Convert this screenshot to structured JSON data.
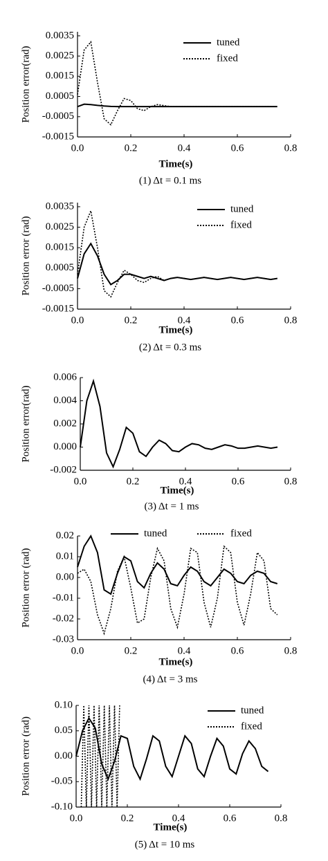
{
  "chart_data": [
    {
      "type": "line",
      "xlabel": "Time(s)",
      "ylabel": "Position error(rad)",
      "caption": "(1)  Δt = 0.1 ms",
      "legend": "upper right",
      "xlim": [
        0,
        0.8
      ],
      "xticks": [
        {
          "value": 0,
          "label": "0.0"
        },
        0.2,
        0.4,
        0.6,
        0.8
      ],
      "ylim": [
        -0.0015,
        0.0037
      ],
      "yticks": [
        0.0035,
        0.0025,
        0.0015,
        0.0005,
        -0.0005,
        -0.0015
      ],
      "x": [
        0,
        0.025,
        0.05,
        0.075,
        0.1,
        0.125,
        0.15,
        0.175,
        0.2,
        0.225,
        0.25,
        0.275,
        0.3,
        0.325,
        0.35,
        0.375,
        0.4,
        0.425,
        0.45,
        0.475,
        0.5,
        0.525,
        0.55,
        0.575,
        0.6,
        0.625,
        0.65,
        0.675,
        0.7,
        0.725,
        0.75
      ],
      "series": [
        {
          "name": "tuned",
          "color": "#000000",
          "dash": "solid",
          "values": [
            0,
            0.00012,
            0.0001,
            6e-05,
            3e-05,
            1e-05,
            0,
            0,
            0,
            0,
            0,
            0,
            0,
            0,
            0,
            0,
            0,
            0,
            0,
            0,
            0,
            0,
            0,
            0,
            0,
            0,
            0,
            0,
            0,
            0,
            0
          ]
        },
        {
          "name": "fixed",
          "color": "#000000",
          "dash": "dotted",
          "values": [
            0.0006,
            0.0028,
            0.0032,
            0.0012,
            -0.0006,
            -0.0009,
            -0.0002,
            0.0004,
            0.0003,
            -0.0001,
            -0.0002,
            0,
            0.0001,
            5e-05,
            0,
            0,
            0,
            0,
            0,
            0,
            0,
            0,
            0,
            0,
            0,
            0,
            0,
            0,
            0,
            0,
            0
          ]
        }
      ]
    },
    {
      "type": "line",
      "xlabel": "Time(s)",
      "ylabel": "Position error (rad)",
      "caption": "(2)  Δt = 0.3 ms",
      "legend": "upper right",
      "xlim": [
        0,
        0.8
      ],
      "xticks": [
        {
          "value": 0,
          "label": "0.0"
        },
        0.2,
        0.4,
        0.6,
        0.8
      ],
      "ylim": [
        -0.0015,
        0.0037
      ],
      "yticks": [
        0.0035,
        0.0025,
        0.0015,
        0.0005,
        -0.0005,
        -0.0015
      ],
      "x": [
        0,
        0.025,
        0.05,
        0.075,
        0.1,
        0.125,
        0.15,
        0.175,
        0.2,
        0.225,
        0.25,
        0.275,
        0.3,
        0.325,
        0.35,
        0.375,
        0.4,
        0.425,
        0.45,
        0.475,
        0.5,
        0.525,
        0.55,
        0.575,
        0.6,
        0.625,
        0.65,
        0.675,
        0.7,
        0.725,
        0.75
      ],
      "series": [
        {
          "name": "tuned",
          "color": "#000000",
          "dash": "solid",
          "values": [
            0,
            0.0012,
            0.0017,
            0.0011,
            0.0002,
            -0.0003,
            -0.0001,
            0.0002,
            0.0002,
            0.0001,
            0,
            0.0001,
            0,
            -0.0001,
            0,
            5e-05,
            0,
            -5e-05,
            0,
            5e-05,
            0,
            -5e-05,
            0,
            5e-05,
            0,
            -5e-05,
            0,
            5e-05,
            0,
            -5e-05,
            0
          ]
        },
        {
          "name": "fixed",
          "color": "#000000",
          "dash": "dotted",
          "values": [
            0.0002,
            0.0025,
            0.0033,
            0.0015,
            -0.0006,
            -0.0009,
            -0.0002,
            0.0004,
            0.0002,
            -0.0001,
            -0.0002,
            0,
            0.0001,
            -0.0001,
            0,
            5e-05,
            0,
            -5e-05,
            0,
            5e-05,
            0,
            -5e-05,
            0,
            5e-05,
            0,
            -5e-05,
            0,
            5e-05,
            0,
            -5e-05,
            0
          ]
        }
      ]
    },
    {
      "type": "line",
      "xlabel": "Time(s)",
      "ylabel": "Position error(rad)",
      "caption": "(3)  Δt = 1 ms",
      "xlim": [
        0,
        0.8
      ],
      "xticks": [
        {
          "value": 0,
          "label": "0.0"
        },
        0.2,
        0.4,
        0.6,
        0.8
      ],
      "ylim": [
        -0.002,
        0.006
      ],
      "yticks": [
        0.006,
        0.004,
        0.002,
        {
          "value": 0,
          "label": "0.000"
        },
        -0.002
      ],
      "x": [
        0,
        0.025,
        0.05,
        0.075,
        0.1,
        0.125,
        0.15,
        0.175,
        0.2,
        0.225,
        0.25,
        0.275,
        0.3,
        0.325,
        0.35,
        0.375,
        0.4,
        0.425,
        0.45,
        0.475,
        0.5,
        0.525,
        0.55,
        0.575,
        0.6,
        0.625,
        0.65,
        0.675,
        0.7,
        0.725,
        0.75
      ],
      "series": [
        {
          "color": "#000000",
          "dash": "solid",
          "values": [
            0,
            0.004,
            0.0057,
            0.0035,
            -0.0005,
            -0.0017,
            -0.0002,
            0.0017,
            0.0012,
            -0.0004,
            -0.0008,
            0,
            0.0006,
            0.0003,
            -0.0003,
            -0.0004,
            0,
            0.0003,
            0.0002,
            -0.0001,
            -0.0002,
            0,
            0.0002,
            0.0001,
            -0.0001,
            -0.0001,
            0,
            0.0001,
            0,
            -0.0001,
            0
          ]
        }
      ]
    },
    {
      "type": "line",
      "xlabel": "Time(s)",
      "ylabel": "Position error (rad)",
      "caption": "(4)  Δt = 3 ms",
      "legend": "top",
      "xlim": [
        0,
        0.8
      ],
      "xticks": [
        {
          "value": 0,
          "label": "0.0"
        },
        0.2,
        0.4,
        0.6,
        0.8
      ],
      "ylim": [
        -0.03,
        0.02
      ],
      "yticks": [
        0.02,
        0.01,
        {
          "value": 0,
          "label": "0.00"
        },
        -0.01,
        -0.02,
        -0.03
      ],
      "x": [
        0,
        0.025,
        0.05,
        0.075,
        0.1,
        0.125,
        0.15,
        0.175,
        0.2,
        0.225,
        0.25,
        0.275,
        0.3,
        0.325,
        0.35,
        0.375,
        0.4,
        0.425,
        0.45,
        0.475,
        0.5,
        0.525,
        0.55,
        0.575,
        0.6,
        0.625,
        0.65,
        0.675,
        0.7,
        0.725,
        0.75
      ],
      "series": [
        {
          "name": "tuned",
          "color": "#000000",
          "dash": "solid",
          "values": [
            0.005,
            0.015,
            0.02,
            0.012,
            -0.006,
            -0.008,
            0.002,
            0.01,
            0.008,
            -0.002,
            -0.005,
            0.002,
            0.007,
            0.004,
            -0.003,
            -0.004,
            0.001,
            0.005,
            0.003,
            -0.002,
            -0.004,
            0,
            0.004,
            0.002,
            -0.002,
            -0.003,
            0.001,
            0.003,
            0.002,
            -0.002,
            -0.003
          ]
        },
        {
          "name": "fixed",
          "color": "#000000",
          "dash": "dotted",
          "values": [
            0.002,
            0.004,
            -0.002,
            -0.018,
            -0.027,
            -0.015,
            0.003,
            0.01,
            -0.005,
            -0.022,
            -0.02,
            0,
            0.014,
            0.008,
            -0.015,
            -0.024,
            -0.008,
            0.014,
            0.012,
            -0.012,
            -0.024,
            -0.01,
            0.015,
            0.012,
            -0.012,
            -0.023,
            -0.008,
            0.012,
            0.008,
            -0.015,
            -0.018
          ]
        }
      ]
    },
    {
      "type": "line",
      "xlabel": "Time(s)",
      "ylabel": "Position error (rad)",
      "caption": "(5)  Δt = 10 ms",
      "legend": "upper right",
      "xlim": [
        0,
        0.8
      ],
      "xticks": [
        {
          "value": 0,
          "label": "0.0"
        },
        0.2,
        0.4,
        0.6,
        0.8
      ],
      "ylim": [
        -0.1,
        0.1
      ],
      "yticks": [
        {
          "value": 0.1,
          "label": "0.10"
        },
        0.05,
        {
          "value": 0,
          "label": "0.00"
        },
        -0.05,
        {
          "value": -0.1,
          "label": "-0.10"
        }
      ],
      "x": [
        0,
        0.025,
        0.05,
        0.075,
        0.1,
        0.125,
        0.15,
        0.175,
        0.2,
        0.225,
        0.25,
        0.275,
        0.3,
        0.325,
        0.35,
        0.375,
        0.4,
        0.425,
        0.45,
        0.475,
        0.5,
        0.525,
        0.55,
        0.575,
        0.6,
        0.625,
        0.65,
        0.675,
        0.7,
        0.725,
        0.75
      ],
      "series": [
        {
          "name": "tuned",
          "color": "#000000",
          "dash": "solid",
          "values": [
            0,
            0.05,
            0.075,
            0.055,
            -0.015,
            -0.045,
            -0.01,
            0.04,
            0.035,
            -0.02,
            -0.045,
            -0.005,
            0.04,
            0.03,
            -0.02,
            -0.04,
            0,
            0.04,
            0.025,
            -0.025,
            -0.04,
            0,
            0.035,
            0.02,
            -0.025,
            -0.035,
            0.005,
            0.03,
            0.015,
            -0.02,
            -0.03
          ]
        },
        {
          "name": "fixed",
          "color": "#000000",
          "dash": "dotted",
          "x": [
            0.02,
            0.03,
            0.04,
            0.05,
            0.06,
            0.07,
            0.08,
            0.09,
            0.1,
            0.11,
            0.12,
            0.13,
            0.14,
            0.15,
            0.16,
            0.17
          ],
          "values": [
            -0.1,
            0.1,
            -0.1,
            0.1,
            -0.1,
            0.1,
            -0.1,
            0.1,
            -0.1,
            0.1,
            -0.1,
            0.1,
            -0.1,
            0.1,
            -0.1,
            0.1
          ]
        }
      ]
    }
  ]
}
